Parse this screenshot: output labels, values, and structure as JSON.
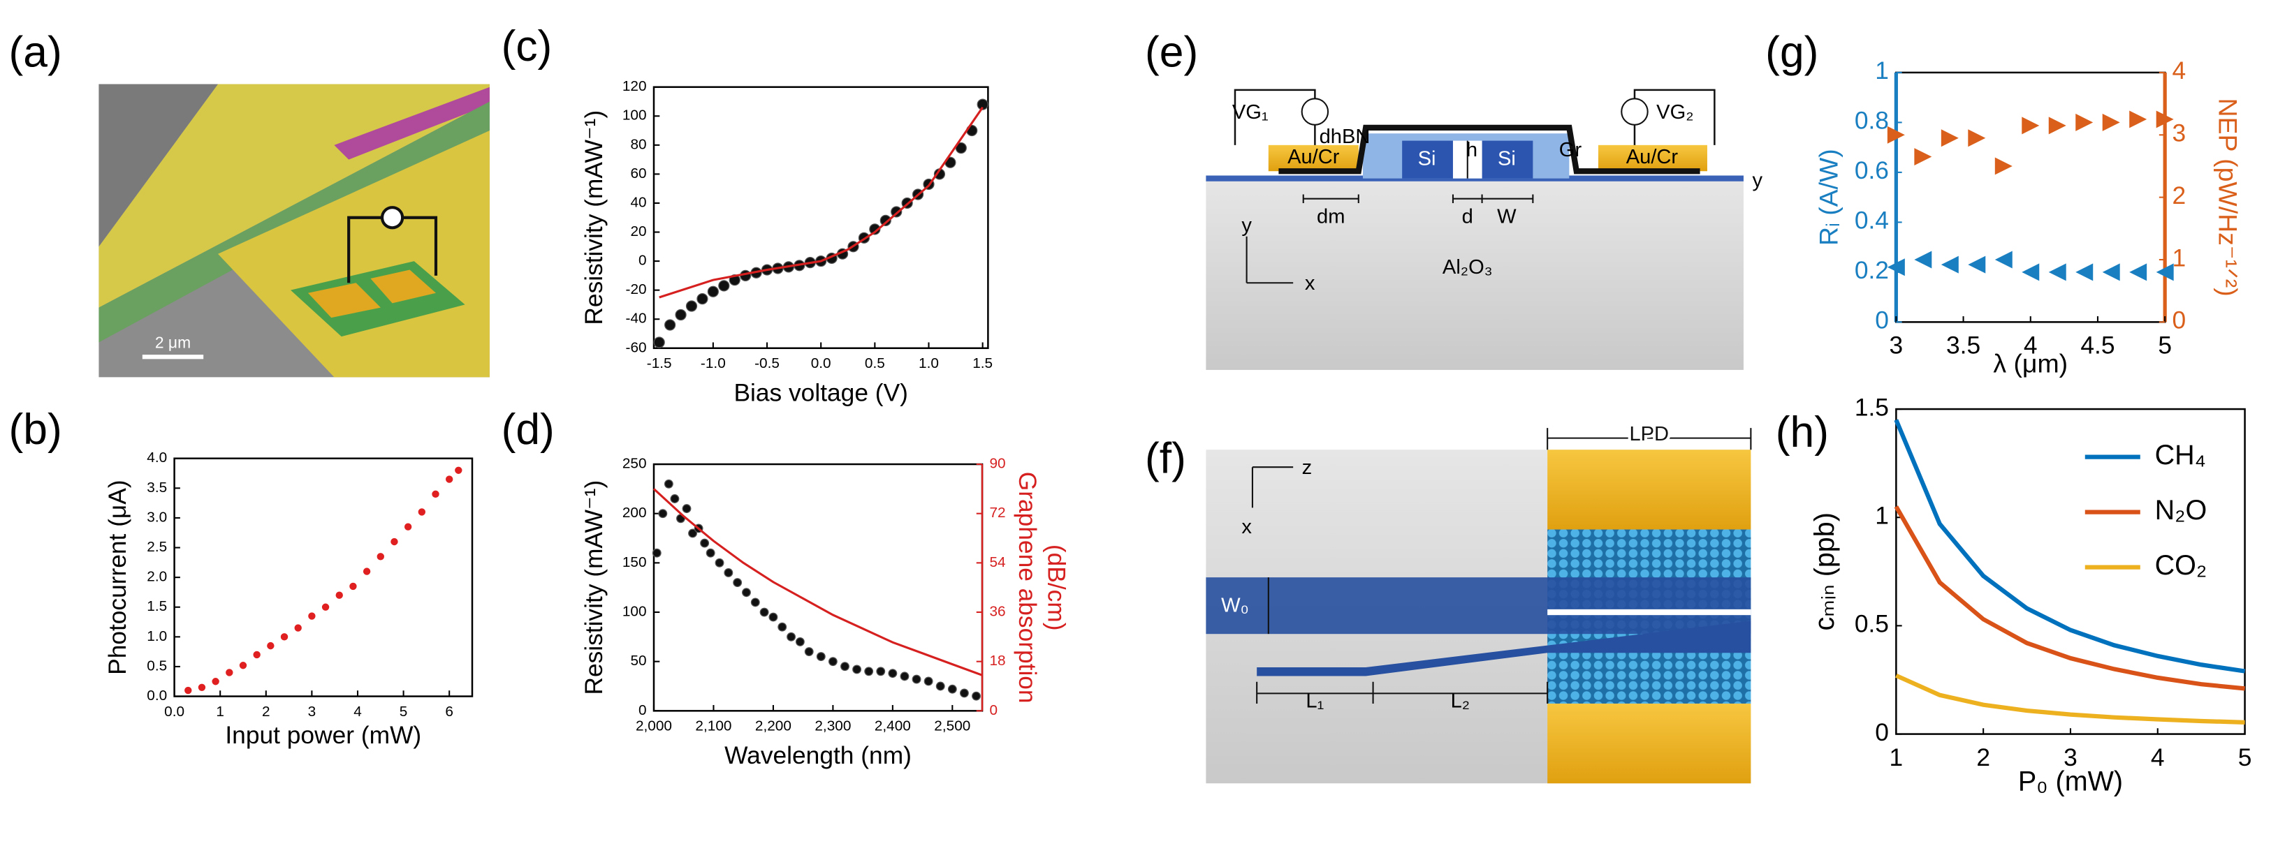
{
  "panel_labels": [
    "(a)",
    "(b)",
    "(c)",
    "(d)",
    "(e)",
    "(f)",
    "(g)",
    "(h)"
  ],
  "diagrams": {
    "a": {
      "scale_bar": "2 μm"
    },
    "e": {
      "labels": [
        "VG₁",
        "dhBN",
        "Au/Cr",
        "Si",
        "h",
        "Si",
        "Gr",
        "VG₂",
        "Au/Cr",
        "y",
        "dm",
        "d",
        "W",
        "Al₂O₃",
        "y",
        "x"
      ]
    },
    "f": {
      "labels": [
        "LPD",
        "z",
        "x",
        "W₀",
        "L₁",
        "L₂"
      ]
    }
  },
  "chart_data": [
    {
      "type": "scatter",
      "xlabel": "Input power (mW)",
      "ylabel": "Photocurrent (μA)",
      "xlim": [
        0,
        6.5
      ],
      "ylim": [
        0,
        4
      ],
      "xticks": [
        {
          "value": 0,
          "label": "0.0"
        },
        1,
        2,
        3,
        4,
        5,
        6
      ],
      "yticks": [
        {
          "value": 0,
          "label": "0.0"
        },
        0.5,
        {
          "value": 1,
          "label": "1.0"
        },
        1.5,
        {
          "value": 2,
          "label": "2.0"
        },
        2.5,
        {
          "value": 3,
          "label": "3.0"
        },
        3.5,
        {
          "value": 4,
          "label": "4.0"
        }
      ],
      "series": [
        {
          "color": "#e02020",
          "mode": "markers",
          "marker": "circle",
          "x": [
            0.3,
            0.6,
            0.9,
            1.2,
            1.5,
            1.8,
            2.1,
            2.4,
            2.7,
            3.0,
            3.3,
            3.6,
            3.9,
            4.2,
            4.5,
            4.8,
            5.1,
            5.4,
            5.7,
            6.0,
            6.2
          ],
          "values": [
            0.1,
            0.15,
            0.25,
            0.4,
            0.52,
            0.7,
            0.85,
            1.0,
            1.15,
            1.35,
            1.5,
            1.7,
            1.85,
            2.1,
            2.35,
            2.6,
            2.85,
            3.1,
            3.4,
            3.65,
            3.8
          ]
        }
      ]
    },
    {
      "type": "scatter",
      "xlabel": "Bias voltage (V)",
      "ylabel": "Resistivity (mAW⁻¹)",
      "xlim": [
        -1.55,
        1.55
      ],
      "ylim": [
        -60,
        120
      ],
      "xticks": [
        -1.5,
        {
          "value": -1,
          "label": "-1.0"
        },
        -0.5,
        {
          "value": 0,
          "label": "0.0"
        },
        0.5,
        {
          "value": 1,
          "label": "1.0"
        },
        1.5
      ],
      "yticks": [
        -60,
        -40,
        -20,
        0,
        20,
        40,
        60,
        80,
        100,
        120
      ],
      "series": [
        {
          "color": "#111111",
          "mode": "markers",
          "marker": "circle",
          "x": [
            -1.5,
            -1.4,
            -1.3,
            -1.2,
            -1.1,
            -1.0,
            -0.9,
            -0.8,
            -0.7,
            -0.6,
            -0.5,
            -0.4,
            -0.3,
            -0.2,
            -0.1,
            0,
            0.1,
            0.2,
            0.3,
            0.4,
            0.5,
            0.6,
            0.7,
            0.8,
            0.9,
            1.0,
            1.1,
            1.2,
            1.3,
            1.4,
            1.5
          ],
          "values": [
            -56,
            -44,
            -37,
            -31,
            -26,
            -21,
            -17,
            -13,
            -10,
            -8,
            -6,
            -5,
            -4,
            -3,
            -1,
            0,
            2,
            5,
            10,
            16,
            22,
            28,
            34,
            40,
            46,
            53,
            60,
            68,
            78,
            90,
            108
          ]
        },
        {
          "color": "#d62020",
          "mode": "line",
          "x": [
            -1.5,
            -1,
            -0.5,
            0,
            0.25,
            0.5,
            1,
            1.5
          ],
          "values": [
            -25,
            -13,
            -6,
            0,
            8,
            20,
            52,
            106
          ]
        }
      ]
    },
    {
      "type": "scatter",
      "xlabel": "Wavelength (nm)",
      "ylabel": "Resistivity (mAW⁻¹)",
      "y2label": [
        "Graphene absorption",
        "(dB/cm)"
      ],
      "y2color": "#d62020",
      "xlim": [
        2000,
        2550
      ],
      "ylim": [
        0,
        250
      ],
      "y2lim": [
        0,
        90
      ],
      "xticks": [
        {
          "value": 2000,
          "label": "2,000"
        },
        {
          "value": 2100,
          "label": "2,100"
        },
        {
          "value": 2200,
          "label": "2,200"
        },
        {
          "value": 2300,
          "label": "2,300"
        },
        {
          "value": 2400,
          "label": "2,400"
        },
        {
          "value": 2500,
          "label": "2,500"
        }
      ],
      "yticks": [
        0,
        50,
        100,
        150,
        200,
        250
      ],
      "y2ticks": [
        0,
        18,
        36,
        54,
        72,
        90
      ],
      "series": [
        {
          "color": "#111111",
          "mode": "markers",
          "marker": "circle",
          "x": [
            2005,
            2015,
            2025,
            2035,
            2045,
            2055,
            2065,
            2075,
            2085,
            2095,
            2110,
            2125,
            2140,
            2155,
            2170,
            2185,
            2200,
            2215,
            2230,
            2245,
            2260,
            2280,
            2300,
            2320,
            2340,
            2360,
            2380,
            2400,
            2420,
            2440,
            2460,
            2480,
            2500,
            2520,
            2540
          ],
          "values": [
            160,
            200,
            230,
            215,
            195,
            205,
            180,
            185,
            170,
            160,
            150,
            140,
            130,
            120,
            110,
            100,
            95,
            85,
            75,
            70,
            60,
            55,
            50,
            45,
            42,
            40,
            40,
            38,
            35,
            32,
            30,
            25,
            22,
            18,
            15
          ]
        },
        {
          "color": "#d62020",
          "mode": "line",
          "axis": "y2",
          "x": [
            2000,
            2050,
            2100,
            2150,
            2200,
            2250,
            2300,
            2350,
            2400,
            2450,
            2500,
            2550
          ],
          "values": [
            81,
            71,
            62,
            54,
            47,
            41,
            35,
            30,
            25,
            21,
            17,
            13
          ]
        }
      ]
    },
    {
      "type": "scatter",
      "xlabel": "λ (μm)",
      "ylabel": "Rᵢ (A/W)",
      "y2label": [
        "NEP (pW/Hz⁻¹ᐟ²)"
      ],
      "ycolor": "#1a7fc1",
      "y2color": "#d95f1a",
      "xlim": [
        3,
        5
      ],
      "ylim": [
        0,
        1
      ],
      "y2lim": [
        0,
        4
      ],
      "xticks": [
        3,
        3.5,
        4,
        4.5,
        5
      ],
      "yticks": [
        0,
        0.2,
        0.4,
        0.6,
        0.8,
        1
      ],
      "y2ticks": [
        0,
        1,
        2,
        3,
        4
      ],
      "series": [
        {
          "color": "#1a7fc1",
          "mode": "markers",
          "marker": "triangle-left",
          "x": [
            3,
            3.2,
            3.4,
            3.6,
            3.8,
            4,
            4.2,
            4.4,
            4.6,
            4.8,
            5
          ],
          "values": [
            0.22,
            0.25,
            0.23,
            0.23,
            0.25,
            0.2,
            0.2,
            0.2,
            0.2,
            0.2,
            0.2
          ]
        },
        {
          "color": "#d95f1a",
          "mode": "markers",
          "marker": "triangle-right",
          "axis": "y2",
          "x": [
            3,
            3.2,
            3.4,
            3.6,
            3.8,
            4,
            4.2,
            4.4,
            4.6,
            4.8,
            5
          ],
          "values": [
            3.0,
            2.65,
            2.95,
            2.95,
            2.5,
            3.15,
            3.15,
            3.2,
            3.2,
            3.25,
            3.25
          ]
        }
      ]
    },
    {
      "type": "line",
      "xlabel": "P₀ (mW)",
      "ylabel": "cₘᵢₙ (ppb)",
      "xlim": [
        1,
        5
      ],
      "ylim": [
        0,
        1.5
      ],
      "xticks": [
        1,
        2,
        3,
        4,
        5
      ],
      "yticks": [
        0,
        0.5,
        1,
        1.5
      ],
      "legend": "upper right",
      "series": [
        {
          "name": "CH₄",
          "color": "#0072bd",
          "mode": "line",
          "x": [
            1,
            1.5,
            2,
            2.5,
            3,
            3.5,
            4,
            4.5,
            5
          ],
          "values": [
            1.45,
            0.97,
            0.73,
            0.58,
            0.48,
            0.41,
            0.36,
            0.32,
            0.29
          ]
        },
        {
          "name": "N₂O",
          "color": "#d95319",
          "mode": "line",
          "x": [
            1,
            1.5,
            2,
            2.5,
            3,
            3.5,
            4,
            4.5,
            5
          ],
          "values": [
            1.05,
            0.7,
            0.53,
            0.42,
            0.35,
            0.3,
            0.26,
            0.23,
            0.21
          ]
        },
        {
          "name": "CO₂",
          "color": "#edb120",
          "mode": "line",
          "x": [
            1,
            1.5,
            2,
            2.5,
            3,
            3.5,
            4,
            4.5,
            5
          ],
          "values": [
            0.27,
            0.18,
            0.135,
            0.108,
            0.09,
            0.077,
            0.068,
            0.06,
            0.054
          ]
        }
      ]
    }
  ]
}
